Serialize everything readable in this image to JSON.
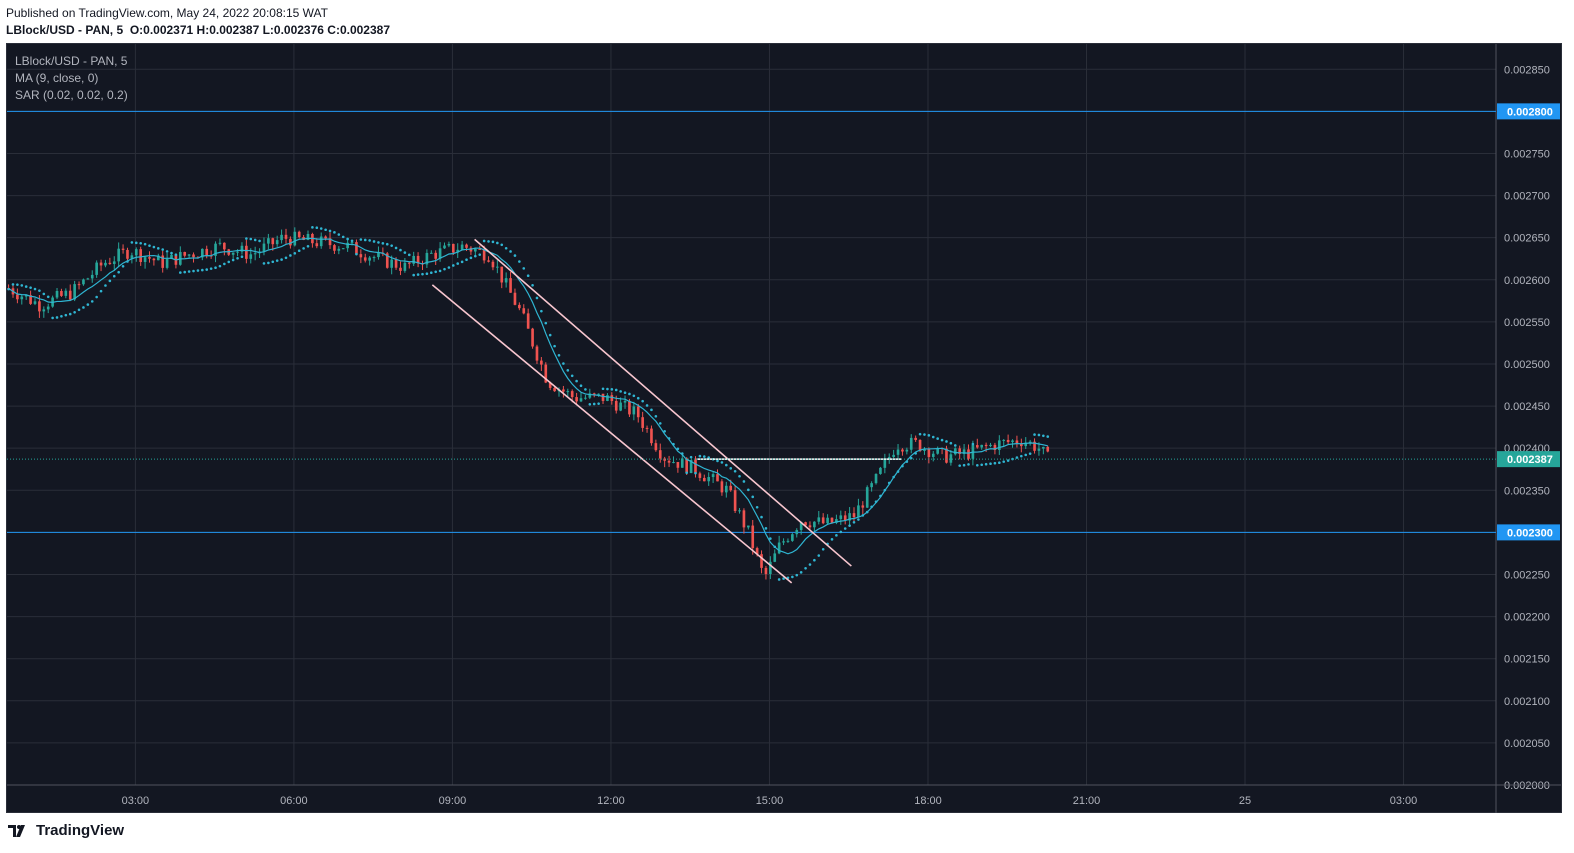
{
  "header": {
    "published": "Published on TradingView.com, May 24, 2022 20:08:15 WAT",
    "symbol_line": "LBlock/USD - PAN, 5",
    "ohlc": "O:0.002371 H:0.002387 L:0.002376 C:0.002387"
  },
  "legend": {
    "symbol": "LBlock/USD - PAN, 5",
    "ma": "MA (9, close, 0)",
    "sar": "SAR (0.02, 0.02, 0.2)"
  },
  "footer": {
    "brand": "TradingView"
  },
  "chart_data": {
    "type": "candlestick",
    "symbol": "LBlock/USD",
    "exchange": "PAN",
    "interval": "5",
    "ylim": [
      0.002,
      0.00288
    ],
    "y_ticks": [
      "0.002000",
      "0.002050",
      "0.002100",
      "0.002150",
      "0.002200",
      "0.002250",
      "0.002300",
      "0.002350",
      "0.002400",
      "0.002450",
      "0.002500",
      "0.002550",
      "0.002600",
      "0.002650",
      "0.002700",
      "0.002750",
      "0.002800",
      "0.002850"
    ],
    "x_ticks": [
      {
        "label": "03:00",
        "t": 3
      },
      {
        "label": "06:00",
        "t": 6
      },
      {
        "label": "09:00",
        "t": 9
      },
      {
        "label": "12:00",
        "t": 12
      },
      {
        "label": "15:00",
        "t": 15
      },
      {
        "label": "18:00",
        "t": 18
      },
      {
        "label": "21:00",
        "t": 21
      },
      {
        "label": "25",
        "t": 24
      },
      {
        "label": "03:00",
        "t": 27
      }
    ],
    "xlim": [
      0.57,
      28.75
    ],
    "horizontal_levels": [
      {
        "value": 0.0028,
        "label": "0.002800",
        "color": "#2196f3"
      },
      {
        "value": 0.0023,
        "label": "0.002300",
        "color": "#2196f3"
      }
    ],
    "current_price": {
      "value": 0.002387,
      "label": "0.002387",
      "color": "#26a69a"
    },
    "price_path": [
      [
        0.6,
        0.00259
      ],
      [
        1.2,
        0.00257
      ],
      [
        1.8,
        0.002585
      ],
      [
        2.4,
        0.00262
      ],
      [
        2.9,
        0.002635
      ],
      [
        3.5,
        0.00262
      ],
      [
        4.0,
        0.00263
      ],
      [
        4.6,
        0.00264
      ],
      [
        5.2,
        0.00263
      ],
      [
        5.8,
        0.00265
      ],
      [
        6.4,
        0.002645
      ],
      [
        7.0,
        0.00264
      ],
      [
        7.6,
        0.002625
      ],
      [
        8.1,
        0.002615
      ],
      [
        8.6,
        0.00263
      ],
      [
        9.2,
        0.00264
      ],
      [
        9.7,
        0.00263
      ],
      [
        10.3,
        0.00256
      ],
      [
        10.8,
        0.00248
      ],
      [
        11.3,
        0.00246
      ],
      [
        11.9,
        0.00246
      ],
      [
        12.5,
        0.00244
      ],
      [
        13.0,
        0.00239
      ],
      [
        13.6,
        0.002375
      ],
      [
        14.2,
        0.00235
      ],
      [
        14.6,
        0.0023
      ],
      [
        14.9,
        0.002245
      ],
      [
        15.2,
        0.002285
      ],
      [
        15.6,
        0.002315
      ],
      [
        16.1,
        0.00231
      ],
      [
        16.6,
        0.00232
      ],
      [
        17.0,
        0.00236
      ],
      [
        17.4,
        0.002405
      ],
      [
        17.8,
        0.002405
      ],
      [
        18.3,
        0.00239
      ],
      [
        18.8,
        0.002395
      ],
      [
        19.3,
        0.002405
      ],
      [
        19.8,
        0.00241
      ],
      [
        20.1,
        0.0024
      ],
      [
        20.3,
        0.002385
      ]
    ],
    "annotations": {
      "channel_upper": {
        "start": [
          9.42,
          0.002648
        ],
        "end": [
          16.55,
          0.00226
        ]
      },
      "channel_lower": {
        "start": [
          8.62,
          0.002594
        ],
        "end": [
          15.42,
          0.00224
        ]
      },
      "horizontal_segment": {
        "start": [
          13.62,
          0.002387
        ],
        "end": [
          17.5,
          0.002387
        ],
        "color": "#ffffff"
      }
    },
    "indicators": {
      "ma": {
        "label": "MA (9, close, 0)",
        "color": "#2fb5d2"
      },
      "sar": {
        "label": "SAR (0.02, 0.02, 0.2)",
        "color": "#2fb5d2"
      }
    },
    "colors": {
      "up": "#26a69a",
      "down": "#ef5350",
      "background": "#131722",
      "grid": "#2a2e39",
      "axis_text": "#b2b5be",
      "channel": "#f8c6cf"
    }
  }
}
